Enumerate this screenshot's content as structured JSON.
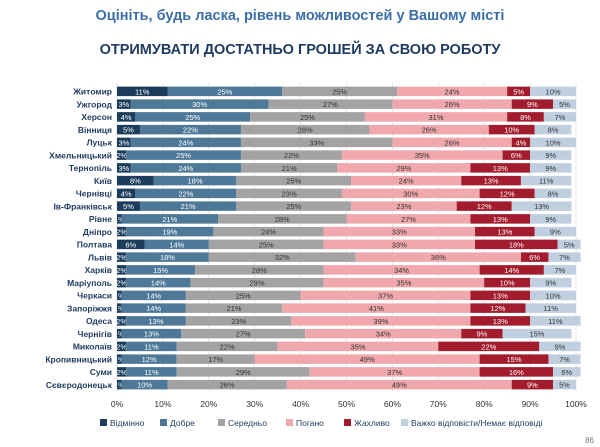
{
  "title": "Оцініть, будь ласка, рівень можливостей у Вашому місті",
  "subtitle": "ОТРИМУВАТИ ДОСТАТНЬО ГРОШЕЙ ЗА СВОЮ РОБОТУ",
  "page_number": "86",
  "chart_data": {
    "type": "bar",
    "orientation": "horizontal",
    "stacked": true,
    "categories": [
      "Житомир",
      "Ужгород",
      "Херсон",
      "Вінниця",
      "Луцьк",
      "Хмельницький",
      "Тернопіль",
      "Київ",
      "Чернівці",
      "Ів-Франківськ",
      "Рівне",
      "Дніпро",
      "Полтава",
      "Львів",
      "Харків",
      "Маріуполь",
      "Черкаси",
      "Запоріжжя",
      "Одеса",
      "Чернігів",
      "Миколаїв",
      "Кропивницький",
      "Суми",
      "Сєвєродонецьк"
    ],
    "series": [
      {
        "name": "Відмінно",
        "color": "#1b3d5b",
        "values": [
          11,
          3,
          4,
          5,
          3,
          2,
          3,
          8,
          4,
          5,
          1,
          2,
          6,
          2,
          2,
          2,
          1,
          1,
          2,
          1,
          2,
          1,
          2,
          1
        ]
      },
      {
        "name": "Добре",
        "color": "#4d7897",
        "values": [
          25,
          30,
          25,
          22,
          24,
          25,
          24,
          18,
          22,
          21,
          21,
          19,
          14,
          18,
          15,
          14,
          14,
          14,
          13,
          13,
          11,
          12,
          11,
          10
        ]
      },
      {
        "name": "Середньо",
        "color": "#a3a3a3",
        "values": [
          25,
          27,
          25,
          28,
          33,
          22,
          21,
          25,
          23,
          25,
          28,
          24,
          25,
          32,
          28,
          29,
          25,
          21,
          23,
          27,
          22,
          17,
          29,
          26
        ]
      },
      {
        "name": "Погано",
        "color": "#f0a8ad",
        "values": [
          24,
          26,
          31,
          26,
          26,
          35,
          29,
          24,
          30,
          23,
          27,
          33,
          33,
          36,
          34,
          35,
          37,
          41,
          39,
          34,
          35,
          49,
          37,
          49
        ]
      },
      {
        "name": "Жахливо",
        "color": "#a21c2e",
        "values": [
          5,
          9,
          8,
          10,
          4,
          6,
          13,
          13,
          12,
          12,
          13,
          13,
          18,
          6,
          14,
          10,
          13,
          12,
          13,
          9,
          22,
          15,
          16,
          9
        ]
      },
      {
        "name": "Важко відповісти/Немає відповіді",
        "color": "#bfcfe0",
        "values": [
          10,
          5,
          7,
          8,
          10,
          9,
          9,
          11,
          8,
          13,
          9,
          9,
          5,
          7,
          7,
          9,
          10,
          11,
          11,
          15,
          9,
          7,
          6,
          5
        ]
      }
    ],
    "xaxis_ticks": [
      "0%",
      "10%",
      "20%",
      "30%",
      "40%",
      "50%",
      "60%",
      "70%",
      "80%",
      "90%",
      "100%"
    ],
    "xlim": [
      0,
      100
    ],
    "grid": true,
    "legend_position": "bottom"
  }
}
